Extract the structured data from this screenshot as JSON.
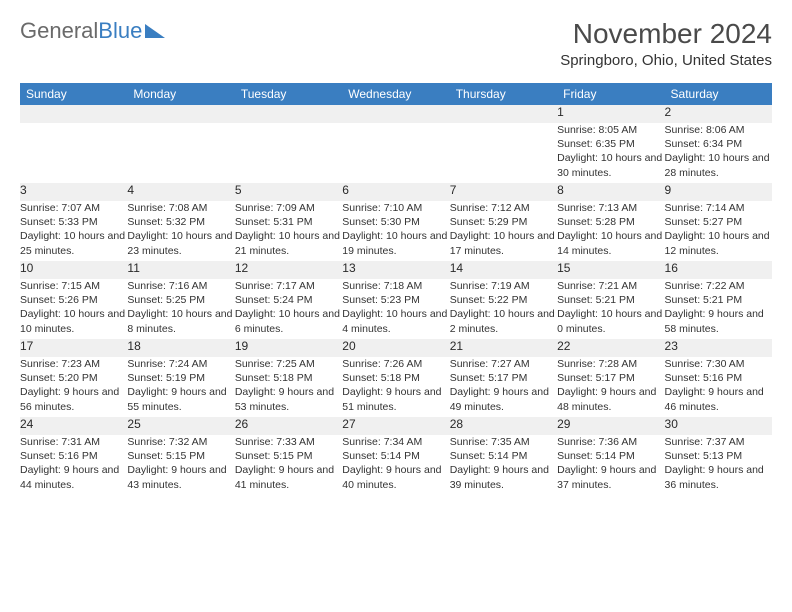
{
  "logo": {
    "text1": "General",
    "text2": "Blue"
  },
  "title": "November 2024",
  "location": "Springboro, Ohio, United States",
  "header_bg": "#3a7ec1",
  "header_fg": "#ffffff",
  "daynum_bg": "#f0f0f0",
  "border_color": "#3a7ec1",
  "text_color": "#333333",
  "days": [
    "Sunday",
    "Monday",
    "Tuesday",
    "Wednesday",
    "Thursday",
    "Friday",
    "Saturday"
  ],
  "weeks": [
    [
      null,
      null,
      null,
      null,
      null,
      {
        "n": "1",
        "sr": "Sunrise: 8:05 AM",
        "ss": "Sunset: 6:35 PM",
        "dl": "Daylight: 10 hours and 30 minutes."
      },
      {
        "n": "2",
        "sr": "Sunrise: 8:06 AM",
        "ss": "Sunset: 6:34 PM",
        "dl": "Daylight: 10 hours and 28 minutes."
      }
    ],
    [
      {
        "n": "3",
        "sr": "Sunrise: 7:07 AM",
        "ss": "Sunset: 5:33 PM",
        "dl": "Daylight: 10 hours and 25 minutes."
      },
      {
        "n": "4",
        "sr": "Sunrise: 7:08 AM",
        "ss": "Sunset: 5:32 PM",
        "dl": "Daylight: 10 hours and 23 minutes."
      },
      {
        "n": "5",
        "sr": "Sunrise: 7:09 AM",
        "ss": "Sunset: 5:31 PM",
        "dl": "Daylight: 10 hours and 21 minutes."
      },
      {
        "n": "6",
        "sr": "Sunrise: 7:10 AM",
        "ss": "Sunset: 5:30 PM",
        "dl": "Daylight: 10 hours and 19 minutes."
      },
      {
        "n": "7",
        "sr": "Sunrise: 7:12 AM",
        "ss": "Sunset: 5:29 PM",
        "dl": "Daylight: 10 hours and 17 minutes."
      },
      {
        "n": "8",
        "sr": "Sunrise: 7:13 AM",
        "ss": "Sunset: 5:28 PM",
        "dl": "Daylight: 10 hours and 14 minutes."
      },
      {
        "n": "9",
        "sr": "Sunrise: 7:14 AM",
        "ss": "Sunset: 5:27 PM",
        "dl": "Daylight: 10 hours and 12 minutes."
      }
    ],
    [
      {
        "n": "10",
        "sr": "Sunrise: 7:15 AM",
        "ss": "Sunset: 5:26 PM",
        "dl": "Daylight: 10 hours and 10 minutes."
      },
      {
        "n": "11",
        "sr": "Sunrise: 7:16 AM",
        "ss": "Sunset: 5:25 PM",
        "dl": "Daylight: 10 hours and 8 minutes."
      },
      {
        "n": "12",
        "sr": "Sunrise: 7:17 AM",
        "ss": "Sunset: 5:24 PM",
        "dl": "Daylight: 10 hours and 6 minutes."
      },
      {
        "n": "13",
        "sr": "Sunrise: 7:18 AM",
        "ss": "Sunset: 5:23 PM",
        "dl": "Daylight: 10 hours and 4 minutes."
      },
      {
        "n": "14",
        "sr": "Sunrise: 7:19 AM",
        "ss": "Sunset: 5:22 PM",
        "dl": "Daylight: 10 hours and 2 minutes."
      },
      {
        "n": "15",
        "sr": "Sunrise: 7:21 AM",
        "ss": "Sunset: 5:21 PM",
        "dl": "Daylight: 10 hours and 0 minutes."
      },
      {
        "n": "16",
        "sr": "Sunrise: 7:22 AM",
        "ss": "Sunset: 5:21 PM",
        "dl": "Daylight: 9 hours and 58 minutes."
      }
    ],
    [
      {
        "n": "17",
        "sr": "Sunrise: 7:23 AM",
        "ss": "Sunset: 5:20 PM",
        "dl": "Daylight: 9 hours and 56 minutes."
      },
      {
        "n": "18",
        "sr": "Sunrise: 7:24 AM",
        "ss": "Sunset: 5:19 PM",
        "dl": "Daylight: 9 hours and 55 minutes."
      },
      {
        "n": "19",
        "sr": "Sunrise: 7:25 AM",
        "ss": "Sunset: 5:18 PM",
        "dl": "Daylight: 9 hours and 53 minutes."
      },
      {
        "n": "20",
        "sr": "Sunrise: 7:26 AM",
        "ss": "Sunset: 5:18 PM",
        "dl": "Daylight: 9 hours and 51 minutes."
      },
      {
        "n": "21",
        "sr": "Sunrise: 7:27 AM",
        "ss": "Sunset: 5:17 PM",
        "dl": "Daylight: 9 hours and 49 minutes."
      },
      {
        "n": "22",
        "sr": "Sunrise: 7:28 AM",
        "ss": "Sunset: 5:17 PM",
        "dl": "Daylight: 9 hours and 48 minutes."
      },
      {
        "n": "23",
        "sr": "Sunrise: 7:30 AM",
        "ss": "Sunset: 5:16 PM",
        "dl": "Daylight: 9 hours and 46 minutes."
      }
    ],
    [
      {
        "n": "24",
        "sr": "Sunrise: 7:31 AM",
        "ss": "Sunset: 5:16 PM",
        "dl": "Daylight: 9 hours and 44 minutes."
      },
      {
        "n": "25",
        "sr": "Sunrise: 7:32 AM",
        "ss": "Sunset: 5:15 PM",
        "dl": "Daylight: 9 hours and 43 minutes."
      },
      {
        "n": "26",
        "sr": "Sunrise: 7:33 AM",
        "ss": "Sunset: 5:15 PM",
        "dl": "Daylight: 9 hours and 41 minutes."
      },
      {
        "n": "27",
        "sr": "Sunrise: 7:34 AM",
        "ss": "Sunset: 5:14 PM",
        "dl": "Daylight: 9 hours and 40 minutes."
      },
      {
        "n": "28",
        "sr": "Sunrise: 7:35 AM",
        "ss": "Sunset: 5:14 PM",
        "dl": "Daylight: 9 hours and 39 minutes."
      },
      {
        "n": "29",
        "sr": "Sunrise: 7:36 AM",
        "ss": "Sunset: 5:14 PM",
        "dl": "Daylight: 9 hours and 37 minutes."
      },
      {
        "n": "30",
        "sr": "Sunrise: 7:37 AM",
        "ss": "Sunset: 5:13 PM",
        "dl": "Daylight: 9 hours and 36 minutes."
      }
    ]
  ]
}
